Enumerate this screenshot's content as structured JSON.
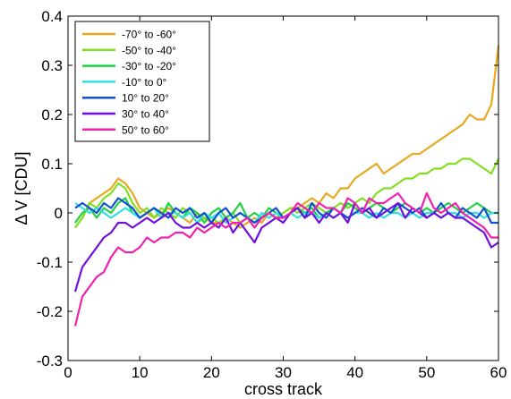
{
  "chart_data": {
    "type": "line",
    "title": "",
    "xlabel": "cross track",
    "ylabel": "Δ V [CDU]",
    "xlim": [
      0,
      60
    ],
    "ylim": [
      -0.3,
      0.4
    ],
    "xticks": [
      0,
      10,
      20,
      30,
      40,
      50,
      60
    ],
    "yticks": [
      -0.3,
      -0.2,
      -0.1,
      0,
      0.1,
      0.2,
      0.3,
      0.4
    ],
    "xtick_labels": [
      "0",
      "10",
      "20",
      "30",
      "40",
      "50",
      "60"
    ],
    "ytick_labels": [
      "-0.3",
      "-0.2",
      "-0.1",
      "0",
      "0.1",
      "0.2",
      "0.3",
      "0.4"
    ],
    "grid": false,
    "legend_position": "top-left",
    "x": [
      1,
      2,
      3,
      4,
      5,
      6,
      7,
      8,
      9,
      10,
      11,
      12,
      13,
      14,
      15,
      16,
      17,
      18,
      19,
      20,
      21,
      22,
      23,
      24,
      25,
      26,
      27,
      28,
      29,
      30,
      31,
      32,
      33,
      34,
      35,
      36,
      37,
      38,
      39,
      40,
      41,
      42,
      43,
      44,
      45,
      46,
      47,
      48,
      49,
      50,
      51,
      52,
      53,
      54,
      55,
      56,
      57,
      58,
      59,
      60
    ],
    "series": [
      {
        "name": "-70° to -60°",
        "color": "#E8A820",
        "values": [
          -0.03,
          -0.01,
          0.02,
          0.03,
          0.04,
          0.05,
          0.07,
          0.06,
          0.04,
          0.01,
          0.0,
          -0.01,
          0.0,
          0.01,
          0.0,
          -0.01,
          -0.02,
          0.0,
          -0.01,
          -0.02,
          -0.02,
          -0.01,
          -0.02,
          -0.03,
          -0.02,
          -0.01,
          -0.02,
          0.0,
          -0.01,
          0.0,
          0.01,
          0.01,
          0.02,
          0.03,
          0.02,
          0.04,
          0.03,
          0.05,
          0.05,
          0.07,
          0.08,
          0.09,
          0.1,
          0.08,
          0.09,
          0.1,
          0.11,
          0.12,
          0.12,
          0.13,
          0.14,
          0.15,
          0.16,
          0.17,
          0.18,
          0.2,
          0.19,
          0.19,
          0.22,
          0.34
        ]
      },
      {
        "name": "-50° to -40°",
        "color": "#80E020",
        "values": [
          -0.03,
          -0.01,
          0.02,
          0.01,
          0.03,
          0.04,
          0.06,
          0.05,
          0.02,
          0.0,
          0.01,
          -0.01,
          0.01,
          0.0,
          -0.01,
          0.01,
          0.0,
          -0.02,
          -0.01,
          -0.01,
          -0.02,
          -0.01,
          0.0,
          -0.02,
          -0.01,
          -0.02,
          -0.01,
          0.0,
          -0.01,
          0.0,
          0.01,
          0.0,
          0.01,
          0.02,
          0.01,
          0.0,
          0.01,
          0.02,
          0.01,
          0.02,
          0.03,
          0.02,
          0.04,
          0.05,
          0.05,
          0.06,
          0.07,
          0.07,
          0.08,
          0.08,
          0.09,
          0.09,
          0.1,
          0.1,
          0.11,
          0.11,
          0.1,
          0.09,
          0.08,
          0.11
        ]
      },
      {
        "name": "-30° to -20°",
        "color": "#20D040",
        "values": [
          -0.02,
          0.0,
          0.01,
          -0.01,
          0.01,
          0.0,
          0.02,
          0.03,
          0.0,
          -0.01,
          0.0,
          0.01,
          -0.01,
          0.02,
          0.0,
          -0.01,
          0.01,
          0.0,
          -0.02,
          0.0,
          0.01,
          -0.01,
          0.0,
          0.02,
          -0.01,
          0.0,
          -0.01,
          0.01,
          0.0,
          -0.01,
          0.0,
          0.01,
          0.0,
          0.01,
          -0.01,
          0.0,
          0.01,
          0.0,
          0.02,
          0.01,
          0.0,
          0.01,
          0.02,
          0.01,
          0.0,
          0.01,
          0.02,
          0.01,
          0.0,
          0.01,
          0.0,
          0.01,
          0.02,
          0.01,
          0.0,
          0.01,
          0.02,
          0.01,
          0.0,
          0.0
        ]
      },
      {
        "name": "-10° to 0°",
        "color": "#30E0E0",
        "values": [
          0.02,
          0.01,
          0.0,
          0.01,
          0.0,
          -0.01,
          0.0,
          0.01,
          0.0,
          -0.01,
          0.0,
          0.01,
          -0.01,
          0.0,
          0.0,
          -0.01,
          0.0,
          -0.02,
          0.0,
          -0.01,
          0.0,
          -0.02,
          -0.01,
          0.0,
          -0.01,
          -0.02,
          0.0,
          -0.01,
          0.0,
          -0.01,
          0.0,
          -0.01,
          0.0,
          0.0,
          -0.01,
          0.0,
          -0.01,
          0.0,
          -0.01,
          0.0,
          0.0,
          -0.01,
          0.0,
          -0.01,
          0.0,
          0.0,
          -0.01,
          0.0,
          -0.01,
          0.0,
          0.0,
          -0.01,
          0.0,
          0.0,
          -0.01,
          0.0,
          0.0,
          -0.01,
          0.0,
          0.0
        ]
      },
      {
        "name": "10° to 20°",
        "color": "#1050D0",
        "values": [
          0.01,
          0.02,
          0.01,
          0.0,
          0.02,
          0.01,
          0.03,
          0.02,
          0.01,
          -0.01,
          0.0,
          0.01,
          0.0,
          -0.01,
          0.01,
          0.0,
          0.01,
          -0.01,
          0.0,
          -0.02,
          0.0,
          0.01,
          -0.01,
          0.0,
          -0.01,
          -0.02,
          -0.01,
          0.0,
          0.01,
          -0.01,
          0.0,
          0.01,
          -0.01,
          0.02,
          0.0,
          -0.01,
          0.01,
          0.0,
          -0.01,
          0.0,
          0.01,
          0.0,
          -0.01,
          0.01,
          0.0,
          0.02,
          0.01,
          0.0,
          0.01,
          -0.01,
          0.0,
          0.02,
          0.0,
          -0.01,
          0.01,
          0.0,
          -0.01,
          0.01,
          -0.02,
          -0.02
        ]
      },
      {
        "name": "30° to 40°",
        "color": "#7010E0",
        "values": [
          -0.16,
          -0.11,
          -0.09,
          -0.07,
          -0.05,
          -0.04,
          -0.02,
          -0.02,
          -0.03,
          -0.02,
          -0.01,
          -0.02,
          -0.01,
          0.0,
          -0.02,
          -0.03,
          -0.03,
          -0.02,
          -0.03,
          -0.02,
          -0.03,
          -0.01,
          -0.04,
          -0.02,
          -0.04,
          -0.06,
          -0.03,
          -0.02,
          -0.01,
          -0.02,
          0.0,
          0.01,
          -0.01,
          0.0,
          -0.02,
          0.0,
          -0.01,
          0.0,
          -0.02,
          0.02,
          0.0,
          0.01,
          -0.01,
          0.0,
          0.01,
          0.02,
          -0.01,
          0.01,
          0.0,
          -0.01,
          0.0,
          -0.01,
          0.0,
          -0.01,
          -0.01,
          -0.02,
          -0.03,
          -0.04,
          -0.07,
          -0.06
        ]
      },
      {
        "name": "50° to 60°",
        "color": "#F020B0",
        "values": [
          -0.23,
          -0.17,
          -0.15,
          -0.13,
          -0.12,
          -0.09,
          -0.07,
          -0.08,
          -0.08,
          -0.07,
          -0.05,
          -0.06,
          -0.05,
          -0.05,
          -0.04,
          -0.04,
          -0.05,
          -0.03,
          -0.04,
          -0.03,
          -0.02,
          -0.03,
          -0.02,
          -0.02,
          -0.01,
          -0.03,
          -0.01,
          0.0,
          -0.01,
          -0.01,
          0.0,
          0.02,
          0.01,
          0.0,
          0.02,
          0.01,
          0.01,
          0.0,
          0.03,
          0.02,
          0.0,
          0.03,
          0.02,
          0.02,
          0.03,
          0.04,
          0.02,
          0.01,
          0.0,
          0.04,
          0.01,
          0.0,
          0.01,
          0.02,
          0.0,
          -0.01,
          -0.02,
          -0.03,
          -0.05,
          -0.05
        ]
      }
    ]
  }
}
